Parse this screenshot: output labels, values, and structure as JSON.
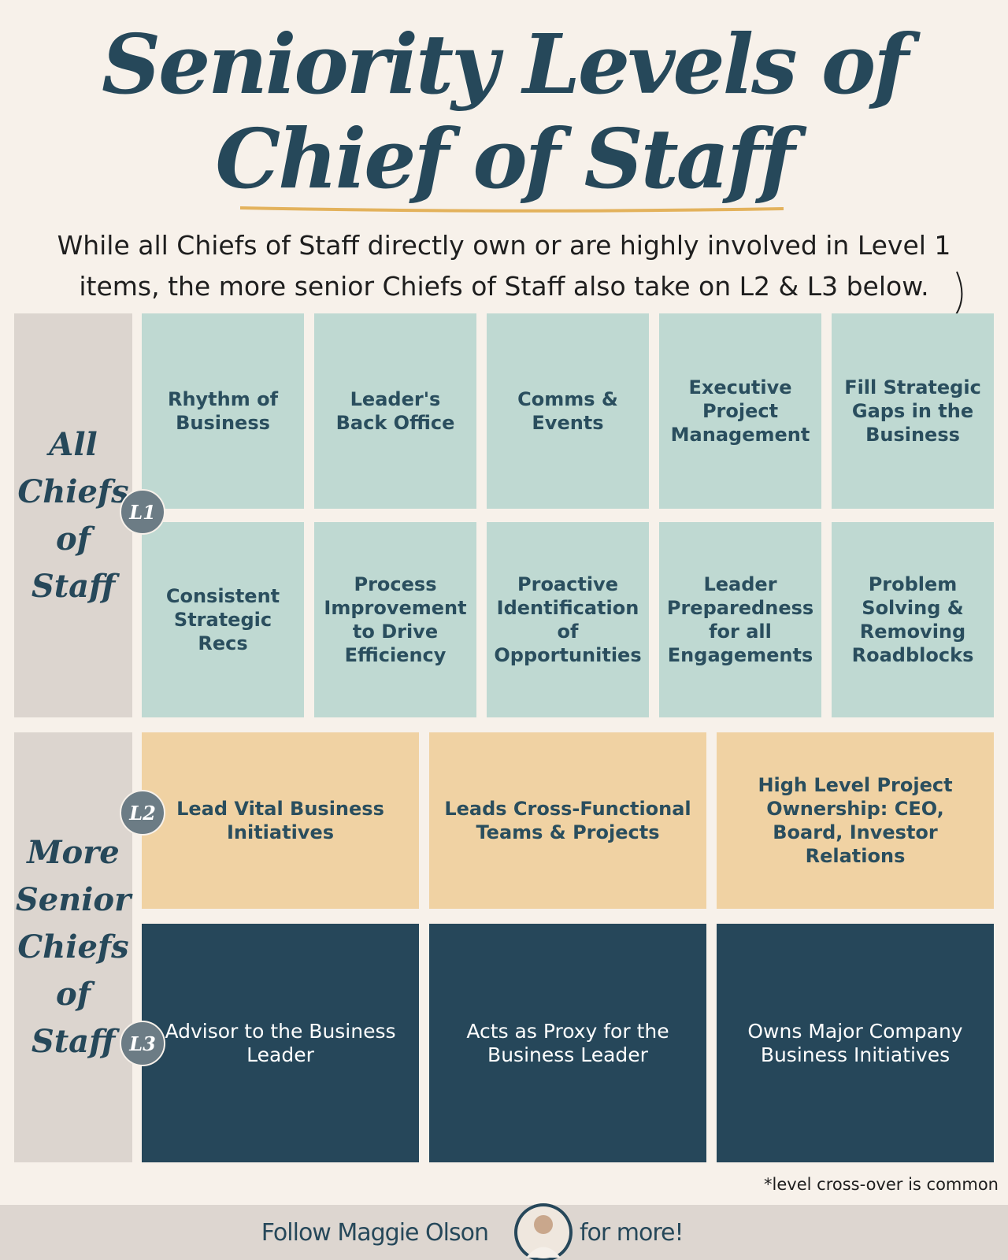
{
  "header": {
    "title_lines": [
      "Seniority Levels of",
      "Chief of Staff"
    ],
    "subtitle": "While all Chiefs of Staff directly own or are highly involved in Level 1 items, the more senior Chiefs of Staff also take on L2 & L3 below."
  },
  "groups": [
    {
      "label": "All Chiefs of Staff",
      "levels": [
        {
          "badge": "L1",
          "rows": [
            [
              "Rhythm of Business",
              "Leader's Back Office",
              "Comms & Events",
              "Executive Project Management",
              "Fill Strategic Gaps in the Business"
            ],
            [
              "Consistent Strategic Recs",
              "Process Improvement to Drive Efficiency",
              "Proactive Identification of Opportunities",
              "Leader Preparedness for all Engagements",
              "Problem Solving & Removing Roadblocks"
            ]
          ]
        }
      ]
    },
    {
      "label": "More Senior Chiefs of Staff",
      "levels": [
        {
          "badge": "L2",
          "rows": [
            [
              "Lead Vital Business Initiatives",
              "Leads Cross-Functional Teams & Projects",
              "High Level Project Ownership: CEO, Board, Investor Relations"
            ]
          ]
        },
        {
          "badge": "L3",
          "rows": [
            [
              "Advisor to the Business Leader",
              "Acts as Proxy for the Business Leader",
              "Owns Major Company  Business Initiatives"
            ]
          ]
        }
      ]
    }
  ],
  "footnote": "*level cross-over is common",
  "footer": {
    "before": "Follow Maggie Olson",
    "after": "for more!"
  }
}
